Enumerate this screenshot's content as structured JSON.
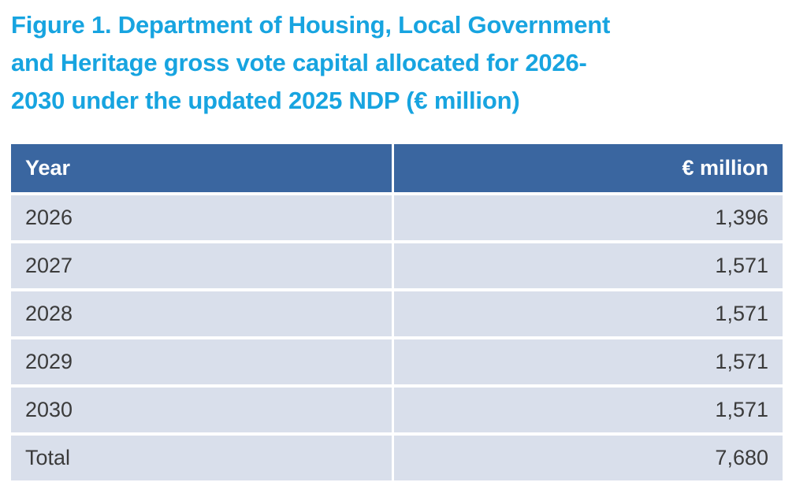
{
  "figure": {
    "title_full": "Figure 1. Department of Housing, Local Government and Heritage gross vote capital allocated for 2026-2030 under the updated 2025 NDP (€ million)",
    "title_lines": [
      "Figure 1. Department of Housing, Local Government",
      "and Heritage gross vote capital allocated for 2026-",
      "2030 under the updated 2025 NDP (€ million)"
    ]
  },
  "table": {
    "columns": {
      "year": "Year",
      "value": "€ million"
    },
    "rows": [
      {
        "year": "2026",
        "value": "1,396"
      },
      {
        "year": "2027",
        "value": "1,571"
      },
      {
        "year": "2028",
        "value": "1,571"
      },
      {
        "year": "2029",
        "value": "1,571"
      },
      {
        "year": "2030",
        "value": "1,571"
      },
      {
        "year": "Total",
        "value": "7,680"
      }
    ]
  },
  "chart_data": {
    "type": "table",
    "title": "Figure 1. Department of Housing, Local Government and Heritage gross vote capital allocated for 2026-2030 under the updated 2025 NDP (€ million)",
    "categories": [
      "2026",
      "2027",
      "2028",
      "2029",
      "2030",
      "Total"
    ],
    "values": [
      1396,
      1571,
      1571,
      1571,
      1571,
      7680
    ],
    "ylabel": "€ million"
  },
  "colors": {
    "title_text": "#17A4E0",
    "header_bg": "#3A66A0",
    "header_text": "#FFFFFF",
    "row_bg": "#D9DFEB",
    "cell_text": "#3B3B3B",
    "page_bg": "#FFFFFF"
  }
}
